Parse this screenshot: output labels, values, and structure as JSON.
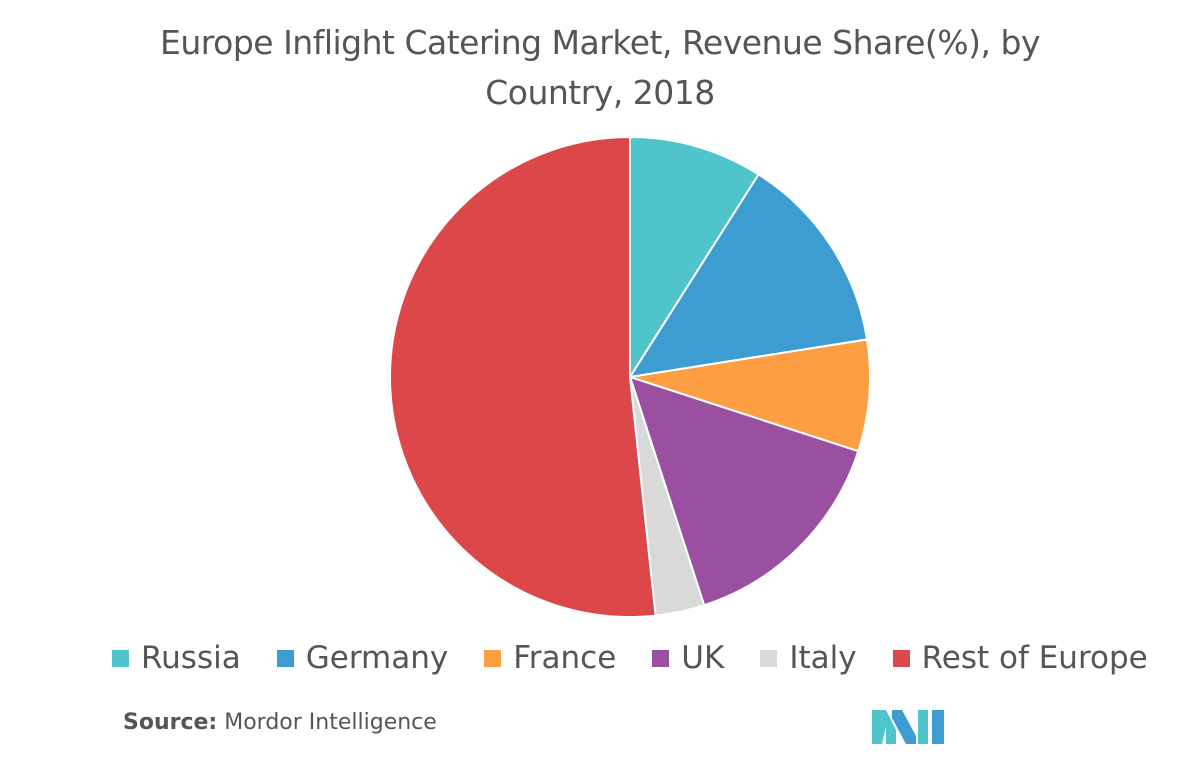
{
  "chart_data": {
    "type": "pie",
    "title": "Europe Inflight Catering Market, Revenue Share(%), by Country, 2018",
    "categories": [
      "Russia",
      "Germany",
      "France",
      "UK",
      "Italy",
      "Rest of Europe"
    ],
    "values": [
      9,
      13.5,
      7.5,
      15,
      3.3,
      51.7
    ],
    "colors": [
      "#4fc4cb",
      "#3d9dd1",
      "#fd9e43",
      "#9a4fa0",
      "#d9d9d9",
      "#dc4749"
    ]
  },
  "footer": {
    "source_label": "Source:",
    "source": "Mordor Intelligence"
  }
}
